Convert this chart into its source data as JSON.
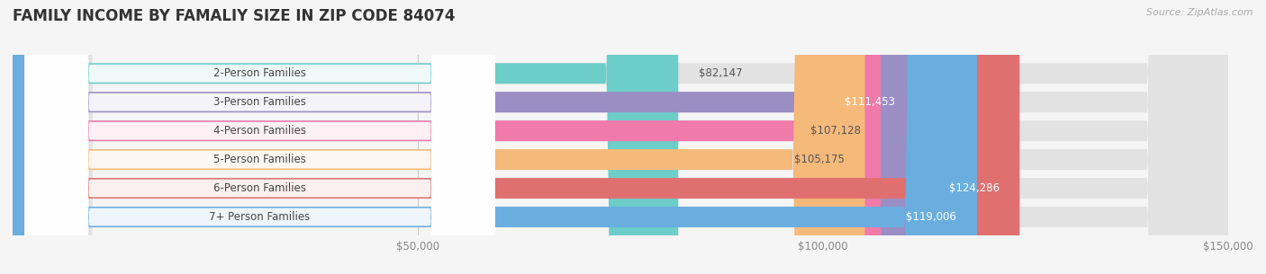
{
  "title": "FAMILY INCOME BY FAMALIY SIZE IN ZIP CODE 84074",
  "source": "Source: ZipAtlas.com",
  "categories": [
    "2-Person Families",
    "3-Person Families",
    "4-Person Families",
    "5-Person Families",
    "6-Person Families",
    "7+ Person Families"
  ],
  "values": [
    82147,
    111453,
    107128,
    105175,
    124286,
    119006
  ],
  "bar_colors": [
    "#6dcdc8",
    "#9b8ec4",
    "#f07aaa",
    "#f5b97a",
    "#e07070",
    "#6aaee0"
  ],
  "label_colors": [
    "#555555",
    "#ffffff",
    "#555555",
    "#555555",
    "#ffffff",
    "#ffffff"
  ],
  "value_labels": [
    "$82,147",
    "$111,453",
    "$107,128",
    "$105,175",
    "$124,286",
    "$119,006"
  ],
  "background_color": "#f5f5f5",
  "bar_bg_color": "#e2e2e2",
  "xlim": [
    0,
    150000
  ],
  "xticks": [
    0,
    50000,
    100000,
    150000
  ],
  "xtick_labels": [
    "",
    "$50,000",
    "$100,000",
    "$150,000"
  ],
  "bar_height": 0.72,
  "title_fontsize": 12,
  "label_fontsize": 8.5,
  "value_fontsize": 8.5,
  "tick_fontsize": 8.5
}
